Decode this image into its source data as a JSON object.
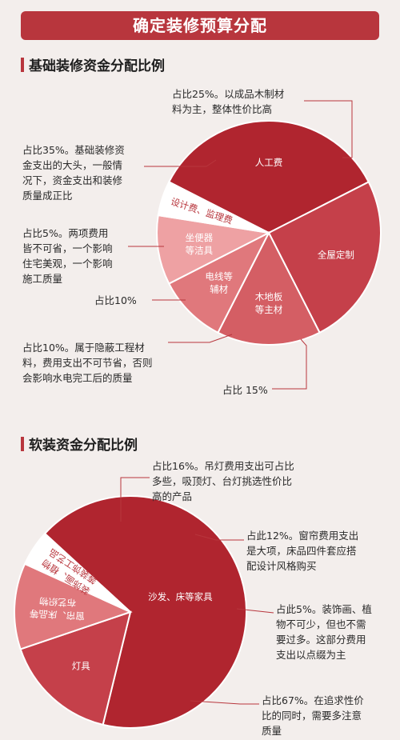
{
  "banner_title": "确定装修预算分配",
  "chart_data": [
    {
      "type": "pie",
      "title": "基础装修资金分配比例",
      "slices": [
        {
          "label": "人工费",
          "value": 35,
          "color": "#b0252f"
        },
        {
          "label": "全屋定制",
          "value": 25,
          "color": "#c5404a"
        },
        {
          "label": "木地板\n等主材",
          "value": 15,
          "color": "#d45e64"
        },
        {
          "label": "电线等\n辅材",
          "value": 10,
          "color": "#e0787c"
        },
        {
          "label": "坐便器\n等洁具",
          "value": 10,
          "color": "#eea1a3"
        },
        {
          "label": "设计费、监理费",
          "value": 5,
          "color": "#ffffff"
        }
      ],
      "annotations": [
        "占比25%。以成品木制材\n料为主，整体性价比高",
        "占比35%。基础装修资\n金支出的大头，一般情\n况下，资金支出和装修\n质量成正比",
        "占比5%。两项费用\n皆不可省，一个影响\n住宅美观，一个影响\n施工质量",
        "占比10%",
        "占比10%。属于隐蔽工程材\n料，费用支出不可节省，否则\n会影响水电完工后的质量",
        "占比 15%"
      ]
    },
    {
      "type": "pie",
      "title": "软装资金分配比例",
      "slices": [
        {
          "label": "沙发、床等家具",
          "value": 67,
          "color": "#b0252f"
        },
        {
          "label": "灯具",
          "value": 16,
          "color": "#c5404a"
        },
        {
          "label": "窗帘、床品等\n布艺织物",
          "value": 12,
          "color": "#e0787c"
        },
        {
          "label": "装饰画、植物\n等装饰工艺品",
          "value": 5,
          "color": "#ffffff"
        }
      ],
      "annotations": [
        "占比16%。吊灯费用支出可占比\n多些，吸顶灯、台灯挑选性价比\n高的产品",
        "占此12%。窗帘费用支出\n是大项，床品四件套应搭\n配设计风格购买",
        "占此5%。装饰画、植\n物不可少，但也不需\n要过多。这部分费用\n支出以点缀为主",
        "占比67%。在追求性价\n比的同时，需要多注意\n质量"
      ]
    }
  ]
}
